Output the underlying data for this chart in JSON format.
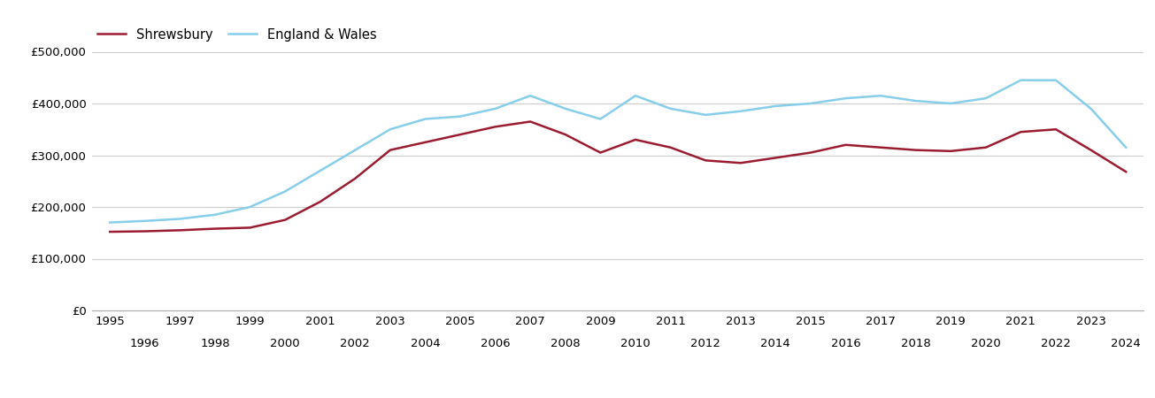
{
  "shrewsbury_years": [
    1995,
    1996,
    1997,
    1998,
    1999,
    2000,
    2001,
    2002,
    2003,
    2004,
    2005,
    2006,
    2007,
    2008,
    2009,
    2010,
    2011,
    2012,
    2013,
    2014,
    2015,
    2016,
    2017,
    2018,
    2019,
    2020,
    2021,
    2022,
    2023,
    2024
  ],
  "shrewsbury_values": [
    152000,
    153000,
    155000,
    158000,
    160000,
    175000,
    210000,
    255000,
    310000,
    325000,
    340000,
    355000,
    365000,
    340000,
    305000,
    330000,
    315000,
    290000,
    285000,
    295000,
    305000,
    320000,
    315000,
    310000,
    308000,
    315000,
    345000,
    350000,
    310000,
    268000
  ],
  "england_years": [
    1995,
    1996,
    1997,
    1998,
    1999,
    2000,
    2001,
    2002,
    2003,
    2004,
    2005,
    2006,
    2007,
    2008,
    2009,
    2010,
    2011,
    2012,
    2013,
    2014,
    2015,
    2016,
    2017,
    2018,
    2019,
    2020,
    2021,
    2022,
    2023,
    2024
  ],
  "england_values": [
    170000,
    173000,
    177000,
    185000,
    200000,
    230000,
    270000,
    310000,
    350000,
    370000,
    375000,
    390000,
    415000,
    390000,
    370000,
    415000,
    390000,
    378000,
    385000,
    395000,
    400000,
    410000,
    415000,
    405000,
    400000,
    410000,
    445000,
    445000,
    390000,
    315000
  ],
  "shrewsbury_color": "#9b1c31",
  "england_color": "#87ceeb",
  "background_color": "#ffffff",
  "grid_color": "#cccccc",
  "ylim": [
    0,
    500000
  ],
  "yticks": [
    0,
    100000,
    200000,
    300000,
    400000,
    500000
  ],
  "legend_labels": [
    "Shrewsbury",
    "England & Wales"
  ],
  "odd_years": [
    1995,
    1997,
    1999,
    2001,
    2003,
    2005,
    2007,
    2009,
    2011,
    2013,
    2015,
    2017,
    2019,
    2021,
    2023
  ],
  "even_years": [
    1996,
    1998,
    2000,
    2002,
    2004,
    2006,
    2008,
    2010,
    2012,
    2014,
    2016,
    2018,
    2020,
    2022,
    2024
  ],
  "xlim": [
    1994.5,
    2024.5
  ]
}
